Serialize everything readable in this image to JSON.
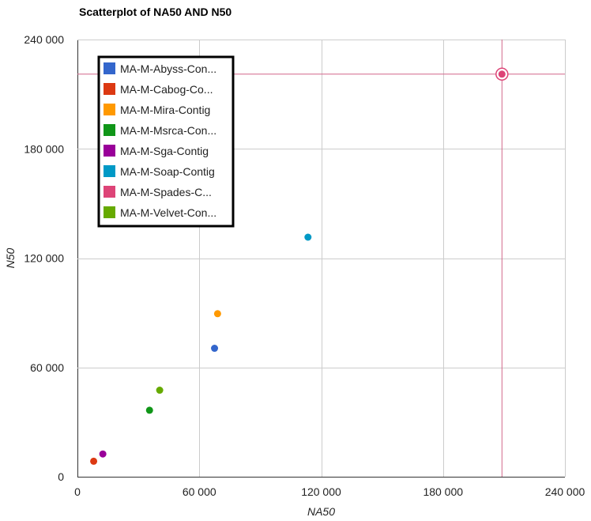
{
  "chart_data": {
    "type": "scatter",
    "title": "Scatterplot of NA50 AND N50",
    "xlabel": "NA50",
    "ylabel": "N50",
    "xlim": [
      0,
      240000
    ],
    "ylim": [
      0,
      240000
    ],
    "xticks": [
      0,
      60000,
      120000,
      180000,
      240000
    ],
    "yticks": [
      0,
      60000,
      120000,
      180000,
      240000
    ],
    "xtick_labels": [
      "0",
      "60 000",
      "120 000",
      "180 000",
      "240 000"
    ],
    "ytick_labels": [
      "0",
      "60 000",
      "120 000",
      "180 000",
      "240 000"
    ],
    "grid": true,
    "legend_position": "top-left",
    "series": [
      {
        "name": "MA-M-Abyss-Con...",
        "color": "#3366cc",
        "points": [
          {
            "x": 67500,
            "y": 70500
          }
        ]
      },
      {
        "name": "MA-M-Cabog-Co...",
        "color": "#dc3912",
        "points": [
          {
            "x": 8000,
            "y": 8500
          }
        ]
      },
      {
        "name": "MA-M-Mira-Contig",
        "color": "#ff9900",
        "points": [
          {
            "x": 69000,
            "y": 89500
          }
        ]
      },
      {
        "name": "MA-M-Msrca-Con...",
        "color": "#109618",
        "points": [
          {
            "x": 35500,
            "y": 36500
          }
        ]
      },
      {
        "name": "MA-M-Sga-Contig",
        "color": "#990099",
        "points": [
          {
            "x": 12500,
            "y": 12500
          }
        ]
      },
      {
        "name": "MA-M-Soap-Contig",
        "color": "#0099c6",
        "points": [
          {
            "x": 113500,
            "y": 131500
          }
        ]
      },
      {
        "name": "MA-M-Spades-C...",
        "color": "#dd4477",
        "points": [
          {
            "x": 209000,
            "y": 221000
          }
        ]
      },
      {
        "name": "MA-M-Velvet-Con...",
        "color": "#66aa00",
        "points": [
          {
            "x": 40500,
            "y": 47500
          }
        ]
      }
    ],
    "highlight": {
      "series_index": 6,
      "crosshair_color": "#d2678a"
    }
  }
}
